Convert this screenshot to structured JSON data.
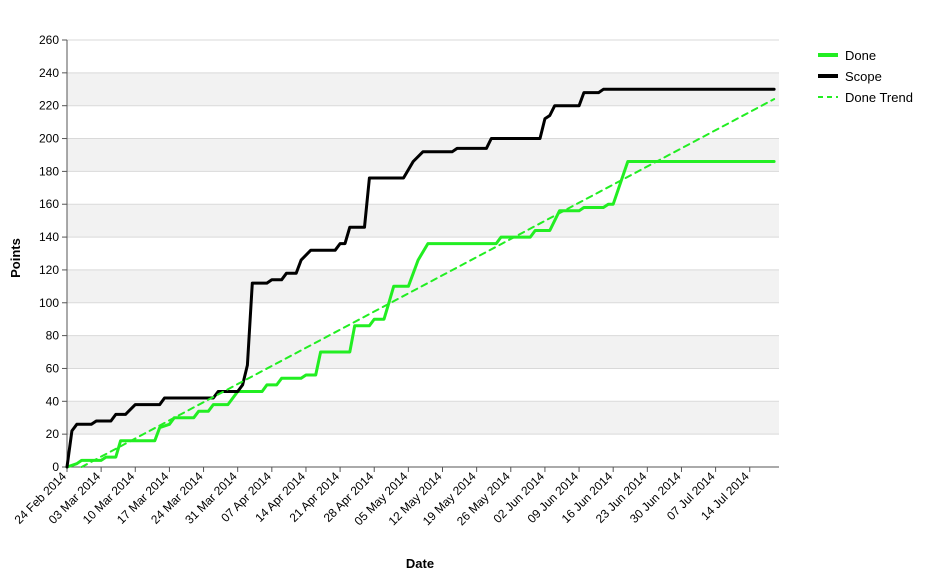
{
  "chart_data": {
    "type": "line",
    "title": "",
    "xlabel": "Date",
    "ylabel": "Points",
    "ylim": [
      0,
      260
    ],
    "xlim": [
      "2014-02-24",
      "2014-07-20"
    ],
    "y_ticks": [
      0,
      20,
      40,
      60,
      80,
      100,
      120,
      140,
      160,
      180,
      200,
      220,
      240,
      260
    ],
    "x_ticks": [
      {
        "date": "2014-02-24",
        "label": "24 Feb 2014"
      },
      {
        "date": "2014-03-03",
        "label": "03 Mar 2014"
      },
      {
        "date": "2014-03-10",
        "label": "10 Mar 2014"
      },
      {
        "date": "2014-03-17",
        "label": "17 Mar 2014"
      },
      {
        "date": "2014-03-24",
        "label": "24 Mar 2014"
      },
      {
        "date": "2014-03-31",
        "label": "31 Mar 2014"
      },
      {
        "date": "2014-04-07",
        "label": "07 Apr 2014"
      },
      {
        "date": "2014-04-14",
        "label": "14 Apr 2014"
      },
      {
        "date": "2014-04-21",
        "label": "21 Apr 2014"
      },
      {
        "date": "2014-04-28",
        "label": "28 Apr 2014"
      },
      {
        "date": "2014-05-05",
        "label": "05 May 2014"
      },
      {
        "date": "2014-05-12",
        "label": "12 May 2014"
      },
      {
        "date": "2014-05-19",
        "label": "19 May 2014"
      },
      {
        "date": "2014-05-26",
        "label": "26 May 2014"
      },
      {
        "date": "2014-06-02",
        "label": "02 Jun 2014"
      },
      {
        "date": "2014-06-09",
        "label": "09 Jun 2014"
      },
      {
        "date": "2014-06-16",
        "label": "16 Jun 2014"
      },
      {
        "date": "2014-06-23",
        "label": "23 Jun 2014"
      },
      {
        "date": "2014-06-30",
        "label": "30 Jun 2014"
      },
      {
        "date": "2014-07-07",
        "label": "07 Jul 2014"
      },
      {
        "date": "2014-07-14",
        "label": "14 Jul 2014"
      }
    ],
    "grid": "horizontal alternating bands",
    "legend_position": "top-right",
    "series": [
      {
        "name": "Done",
        "color": "#22ee22",
        "style": "solid",
        "points": [
          [
            "2014-02-24",
            0
          ],
          [
            "2014-02-26",
            2
          ],
          [
            "2014-02-27",
            4
          ],
          [
            "2014-03-03",
            4
          ],
          [
            "2014-03-04",
            6
          ],
          [
            "2014-03-06",
            6
          ],
          [
            "2014-03-07",
            16
          ],
          [
            "2014-03-14",
            16
          ],
          [
            "2014-03-15",
            24
          ],
          [
            "2014-03-17",
            26
          ],
          [
            "2014-03-18",
            30
          ],
          [
            "2014-03-22",
            30
          ],
          [
            "2014-03-23",
            34
          ],
          [
            "2014-03-25",
            34
          ],
          [
            "2014-03-26",
            38
          ],
          [
            "2014-03-29",
            38
          ],
          [
            "2014-03-31",
            46
          ],
          [
            "2014-04-05",
            46
          ],
          [
            "2014-04-06",
            50
          ],
          [
            "2014-04-08",
            50
          ],
          [
            "2014-04-09",
            54
          ],
          [
            "2014-04-13",
            54
          ],
          [
            "2014-04-14",
            56
          ],
          [
            "2014-04-16",
            56
          ],
          [
            "2014-04-17",
            70
          ],
          [
            "2014-04-23",
            70
          ],
          [
            "2014-04-24",
            86
          ],
          [
            "2014-04-27",
            86
          ],
          [
            "2014-04-28",
            90
          ],
          [
            "2014-04-30",
            90
          ],
          [
            "2014-05-01",
            100
          ],
          [
            "2014-05-02",
            110
          ],
          [
            "2014-05-05",
            110
          ],
          [
            "2014-05-07",
            126
          ],
          [
            "2014-05-09",
            136
          ],
          [
            "2014-05-23",
            136
          ],
          [
            "2014-05-24",
            140
          ],
          [
            "2014-05-30",
            140
          ],
          [
            "2014-05-31",
            144
          ],
          [
            "2014-06-03",
            144
          ],
          [
            "2014-06-05",
            156
          ],
          [
            "2014-06-09",
            156
          ],
          [
            "2014-06-10",
            158
          ],
          [
            "2014-06-14",
            158
          ],
          [
            "2014-06-15",
            160
          ],
          [
            "2014-06-16",
            160
          ],
          [
            "2014-06-19",
            186
          ],
          [
            "2014-07-19",
            186
          ]
        ]
      },
      {
        "name": "Scope",
        "color": "#000000",
        "style": "solid",
        "points": [
          [
            "2014-02-24",
            0
          ],
          [
            "2014-02-25",
            22
          ],
          [
            "2014-02-26",
            26
          ],
          [
            "2014-03-01",
            26
          ],
          [
            "2014-03-02",
            28
          ],
          [
            "2014-03-05",
            28
          ],
          [
            "2014-03-06",
            32
          ],
          [
            "2014-03-08",
            32
          ],
          [
            "2014-03-10",
            38
          ],
          [
            "2014-03-15",
            38
          ],
          [
            "2014-03-16",
            42
          ],
          [
            "2014-03-26",
            42
          ],
          [
            "2014-03-27",
            46
          ],
          [
            "2014-03-31",
            46
          ],
          [
            "2014-04-01",
            50
          ],
          [
            "2014-04-02",
            62
          ],
          [
            "2014-04-03",
            112
          ],
          [
            "2014-04-06",
            112
          ],
          [
            "2014-04-07",
            114
          ],
          [
            "2014-04-09",
            114
          ],
          [
            "2014-04-10",
            118
          ],
          [
            "2014-04-12",
            118
          ],
          [
            "2014-04-13",
            126
          ],
          [
            "2014-04-15",
            132
          ],
          [
            "2014-04-20",
            132
          ],
          [
            "2014-04-21",
            136
          ],
          [
            "2014-04-22",
            136
          ],
          [
            "2014-04-23",
            146
          ],
          [
            "2014-04-26",
            146
          ],
          [
            "2014-04-27",
            176
          ],
          [
            "2014-05-04",
            176
          ],
          [
            "2014-05-06",
            186
          ],
          [
            "2014-05-08",
            192
          ],
          [
            "2014-05-14",
            192
          ],
          [
            "2014-05-15",
            194
          ],
          [
            "2014-05-21",
            194
          ],
          [
            "2014-05-22",
            200
          ],
          [
            "2014-06-01",
            200
          ],
          [
            "2014-06-02",
            212
          ],
          [
            "2014-06-03",
            214
          ],
          [
            "2014-06-04",
            220
          ],
          [
            "2014-06-09",
            220
          ],
          [
            "2014-06-10",
            228
          ],
          [
            "2014-06-13",
            228
          ],
          [
            "2014-06-14",
            230
          ],
          [
            "2014-07-19",
            230
          ]
        ]
      },
      {
        "name": "Done Trend",
        "color": "#22ee22",
        "style": "dashed",
        "points": [
          [
            "2014-02-27",
            0
          ],
          [
            "2014-07-19",
            224
          ]
        ]
      }
    ]
  }
}
